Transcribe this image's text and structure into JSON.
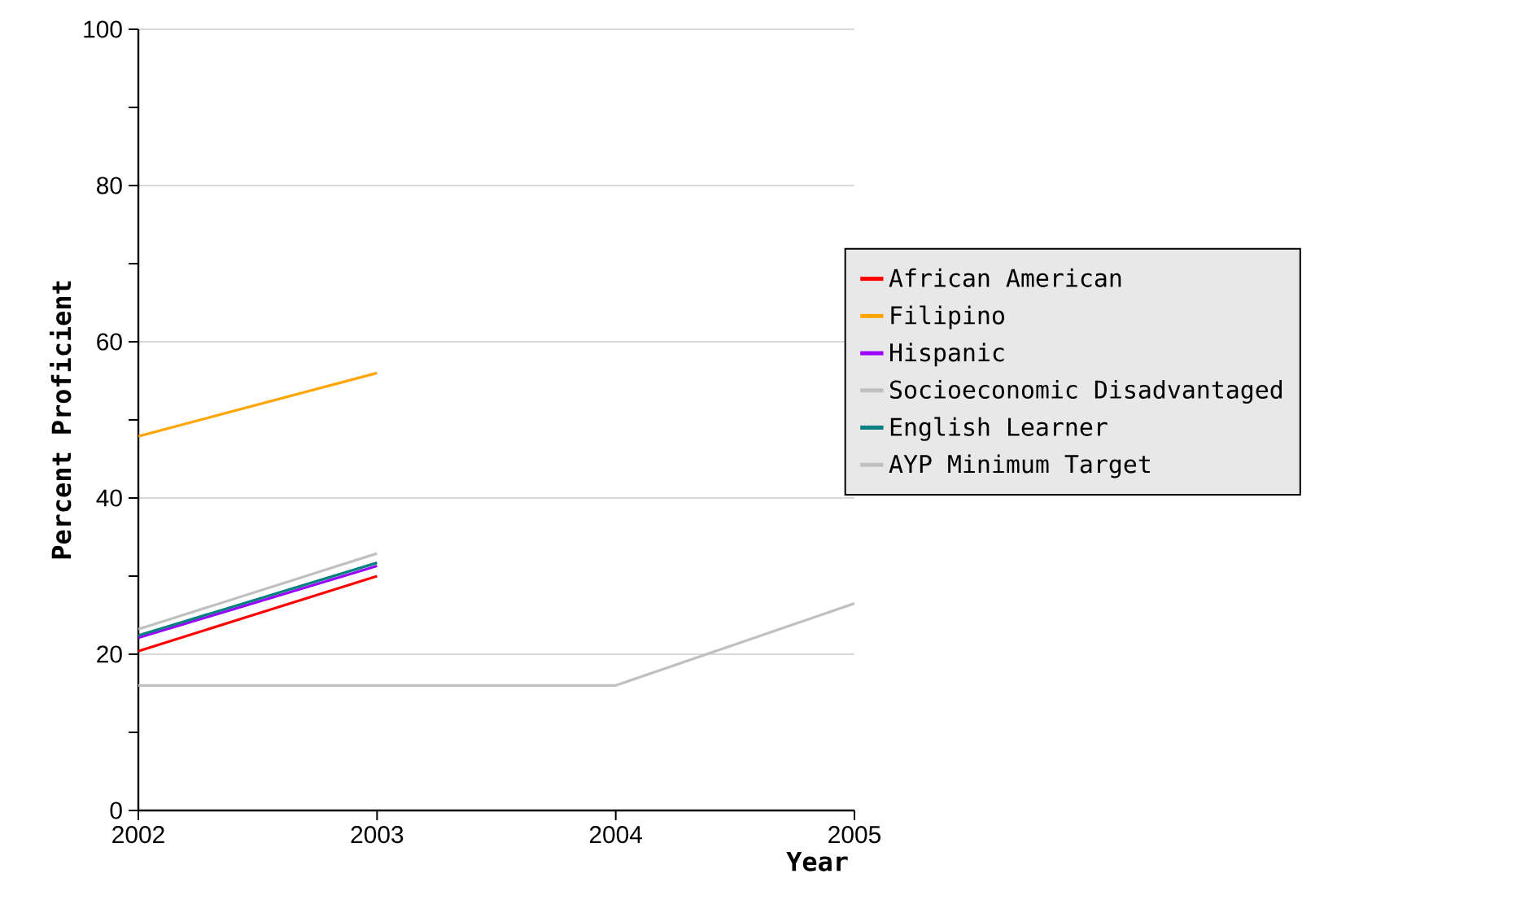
{
  "chart_data": {
    "type": "line",
    "xlabel": "Year",
    "ylabel": "Percent Proficient",
    "x": [
      2002,
      2003,
      2004,
      2005
    ],
    "series": [
      {
        "name": "African American",
        "color": "#ff0000",
        "values": [
          20.4,
          30.0,
          null,
          null
        ]
      },
      {
        "name": "Filipino",
        "color": "#ffa500",
        "values": [
          47.9,
          56.0,
          null,
          null
        ]
      },
      {
        "name": "Hispanic",
        "color": "#9900ff",
        "values": [
          22.1,
          31.3,
          null,
          null
        ]
      },
      {
        "name": "Socioeconomic Disadvantaged",
        "color": "#c0c0c0",
        "values": [
          23.2,
          32.9,
          null,
          null
        ]
      },
      {
        "name": "English Learner",
        "color": "#008080",
        "values": [
          22.4,
          31.7,
          null,
          null
        ]
      },
      {
        "name": "AYP Minimum Target",
        "color": "#c0c0c0",
        "values": [
          16.0,
          16.0,
          16.0,
          26.5
        ]
      }
    ],
    "xlim": [
      2002,
      2005
    ],
    "xticks": [
      2002,
      2003,
      2004,
      2005
    ],
    "ylim": [
      0,
      100
    ],
    "yticks": [
      0,
      20,
      40,
      60,
      80,
      100
    ],
    "grid": "y",
    "legend": "right",
    "marker": "none",
    "line_style": "solid"
  }
}
